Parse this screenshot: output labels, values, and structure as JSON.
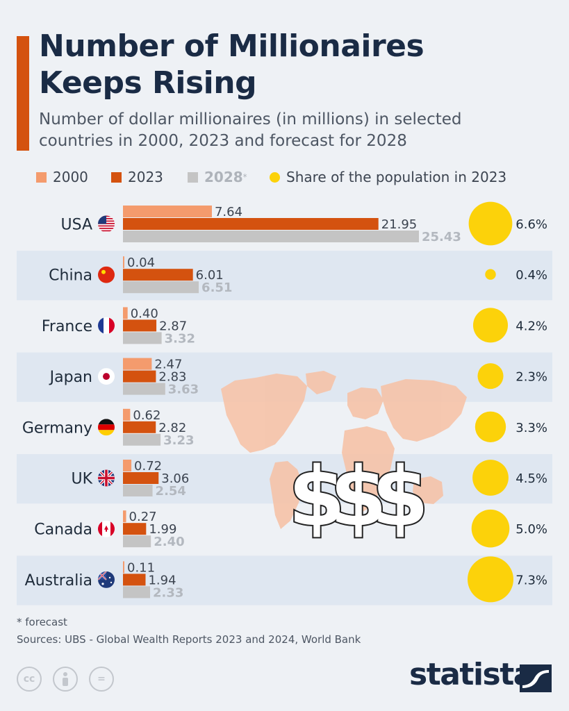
{
  "title_line1": "Number of Millionaires",
  "title_line2": "Keeps Rising",
  "subtitle_line1": "Number of dollar millionaires (in millions) in selected",
  "subtitle_line2": "countries in 2000, 2023 and forecast for 2028",
  "legend": {
    "s2000": "2000",
    "s2023": "2023",
    "s2028": "2028",
    "s2028_mark": "*",
    "share": "Share of the population in 2023"
  },
  "colors": {
    "s2000": "#f49b6d",
    "s2023": "#d4520f",
    "s2028": "#c4c4c4",
    "share": "#fcd20a",
    "band": "#dfe7f1",
    "map": "#f6c3a8"
  },
  "decoration": {
    "dollars": "$$$"
  },
  "chart_data": {
    "type": "bar",
    "orientation": "horizontal",
    "categories": [
      "USA",
      "China",
      "France",
      "Japan",
      "Germany",
      "UK",
      "Canada",
      "Australia"
    ],
    "series": [
      {
        "name": "2000",
        "values": [
          7.64,
          0.04,
          0.4,
          2.47,
          0.62,
          0.72,
          0.27,
          0.11
        ],
        "labels": [
          "7.64",
          "0.04",
          "0.40",
          "2.47",
          "0.62",
          "0.72",
          "0.27",
          "0.11"
        ]
      },
      {
        "name": "2023",
        "values": [
          21.95,
          6.01,
          2.87,
          2.83,
          2.82,
          3.06,
          1.99,
          1.94
        ],
        "labels": [
          "21.95",
          "6.01",
          "2.87",
          "2.83",
          "2.82",
          "3.06",
          "1.99",
          "1.94"
        ]
      },
      {
        "name": "2028*",
        "values": [
          25.43,
          6.51,
          3.32,
          3.63,
          3.23,
          2.54,
          2.4,
          2.33
        ],
        "labels": [
          "25.43",
          "6.51",
          "3.32",
          "3.63",
          "3.23",
          "2.54",
          "2.40",
          "2.33"
        ]
      }
    ],
    "share_of_population_2023": {
      "values": [
        6.6,
        0.4,
        4.2,
        2.3,
        3.3,
        4.5,
        5.0,
        7.3
      ],
      "labels": [
        "6.6%",
        "0.4%",
        "4.2%",
        "2.3%",
        "3.3%",
        "4.5%",
        "5.0%",
        "7.3%"
      ]
    },
    "flags": [
      "us-flag-icon",
      "cn-flag-icon",
      "fr-flag-icon",
      "jp-flag-icon",
      "de-flag-icon",
      "uk-flag-icon",
      "ca-flag-icon",
      "au-flag-icon"
    ],
    "xlim": [
      0,
      25.43
    ],
    "grid": false,
    "legend_position": "top"
  },
  "footnote": "* forecast",
  "source": "Sources: UBS - Global Wealth Reports 2023 and 2024, World Bank",
  "license_icons": {
    "cc": "cc",
    "by": "by-person-icon",
    "nd": "="
  },
  "brand": "statista"
}
